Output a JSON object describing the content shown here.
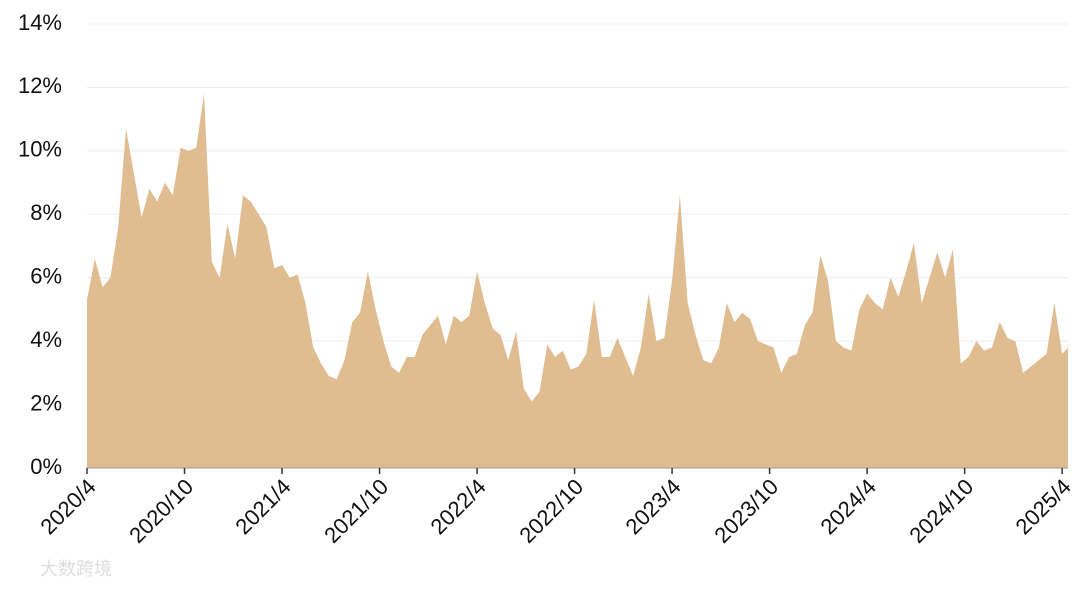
{
  "chart_data": {
    "type": "area",
    "x": [
      2020.25,
      2020.29,
      2020.33,
      2020.37,
      2020.41,
      2020.45,
      2020.49,
      2020.53,
      2020.57,
      2020.61,
      2020.65,
      2020.69,
      2020.73,
      2020.77,
      2020.81,
      2020.85,
      2020.89,
      2020.93,
      2020.97,
      2021.01,
      2021.05,
      2021.09,
      2021.13,
      2021.17,
      2021.21,
      2021.25,
      2021.29,
      2021.33,
      2021.37,
      2021.41,
      2021.45,
      2021.49,
      2021.53,
      2021.57,
      2021.61,
      2021.65,
      2021.69,
      2021.73,
      2021.77,
      2021.81,
      2021.85,
      2021.89,
      2021.93,
      2021.97,
      2022.01,
      2022.05,
      2022.09,
      2022.13,
      2022.17,
      2022.21,
      2022.25,
      2022.29,
      2022.33,
      2022.37,
      2022.41,
      2022.45,
      2022.49,
      2022.53,
      2022.57,
      2022.61,
      2022.65,
      2022.69,
      2022.73,
      2022.77,
      2022.81,
      2022.85,
      2022.89,
      2022.93,
      2022.97,
      2023.01,
      2023.05,
      2023.09,
      2023.13,
      2023.17,
      2023.21,
      2023.25,
      2023.29,
      2023.33,
      2023.37,
      2023.41,
      2023.45,
      2023.49,
      2023.53,
      2023.57,
      2023.61,
      2023.65,
      2023.69,
      2023.73,
      2023.77,
      2023.81,
      2023.85,
      2023.89,
      2023.93,
      2023.97,
      2024.01,
      2024.05,
      2024.09,
      2024.13,
      2024.17,
      2024.21,
      2024.25,
      2024.29,
      2024.33,
      2024.37,
      2024.41,
      2024.45,
      2024.49,
      2024.53,
      2024.57,
      2024.61,
      2024.65,
      2024.69,
      2024.73,
      2024.77,
      2024.81,
      2024.85,
      2024.89,
      2024.93,
      2024.97,
      2025.01,
      2025.05,
      2025.09,
      2025.13,
      2025.17,
      2025.21,
      2025.25,
      2025.28
    ],
    "series": [
      {
        "color": "#dfbd91",
        "values": [
          5.3,
          6.6,
          5.7,
          6.0,
          7.6,
          10.7,
          9.3,
          7.9,
          8.8,
          8.4,
          9.0,
          8.6,
          10.1,
          10.0,
          10.1,
          11.8,
          6.5,
          6.0,
          7.7,
          6.6,
          8.6,
          8.4,
          8.0,
          7.6,
          6.3,
          6.4,
          6.0,
          6.1,
          5.2,
          3.8,
          3.3,
          2.9,
          2.8,
          3.4,
          4.6,
          4.9,
          6.2,
          5.0,
          4.0,
          3.2,
          3.0,
          3.5,
          3.5,
          4.2,
          4.5,
          4.8,
          3.9,
          4.8,
          4.6,
          4.8,
          6.2,
          5.2,
          4.4,
          4.2,
          3.4,
          4.3,
          2.5,
          2.1,
          2.4,
          3.9,
          3.5,
          3.7,
          3.1,
          3.2,
          3.6,
          5.3,
          3.5,
          3.5,
          4.1,
          3.5,
          2.9,
          3.8,
          5.5,
          4.0,
          4.1,
          5.9,
          8.6,
          5.2,
          4.2,
          3.4,
          3.3,
          3.8,
          5.2,
          4.6,
          4.9,
          4.7,
          4.0,
          3.9,
          3.8,
          3.0,
          3.5,
          3.6,
          4.5,
          4.9,
          6.7,
          5.9,
          4.0,
          3.8,
          3.7,
          5.0,
          5.5,
          5.2,
          5.0,
          6.0,
          5.4,
          6.2,
          7.1,
          5.2,
          6.0,
          6.8,
          6.0,
          6.9,
          3.3,
          3.5,
          4.0,
          3.7,
          3.8,
          4.6,
          4.1,
          4.0,
          3.0,
          3.2,
          3.4,
          3.6,
          5.2,
          3.6,
          3.8
        ]
      }
    ],
    "xlim": [
      2020.25,
      2025.28
    ],
    "xticks": [
      {
        "value": 2020.25,
        "label": "2020/4"
      },
      {
        "value": 2020.75,
        "label": "2020/10"
      },
      {
        "value": 2021.25,
        "label": "2021/4"
      },
      {
        "value": 2021.75,
        "label": "2021/10"
      },
      {
        "value": 2022.25,
        "label": "2022/4"
      },
      {
        "value": 2022.75,
        "label": "2022/10"
      },
      {
        "value": 2023.25,
        "label": "2023/4"
      },
      {
        "value": 2023.75,
        "label": "2023/10"
      },
      {
        "value": 2024.25,
        "label": "2024/4"
      },
      {
        "value": 2024.75,
        "label": "2024/10"
      },
      {
        "value": 2025.25,
        "label": "2025/4"
      }
    ],
    "ylim": [
      0,
      14
    ],
    "yticks": [
      {
        "value": 0,
        "label": "0%"
      },
      {
        "value": 2,
        "label": "2%"
      },
      {
        "value": 4,
        "label": "4%"
      },
      {
        "value": 6,
        "label": "6%"
      },
      {
        "value": 8,
        "label": "8%"
      },
      {
        "value": 10,
        "label": "10%"
      },
      {
        "value": 12,
        "label": "12%"
      },
      {
        "value": 14,
        "label": "14%"
      }
    ],
    "grid": true,
    "watermark": "大数跨境"
  }
}
